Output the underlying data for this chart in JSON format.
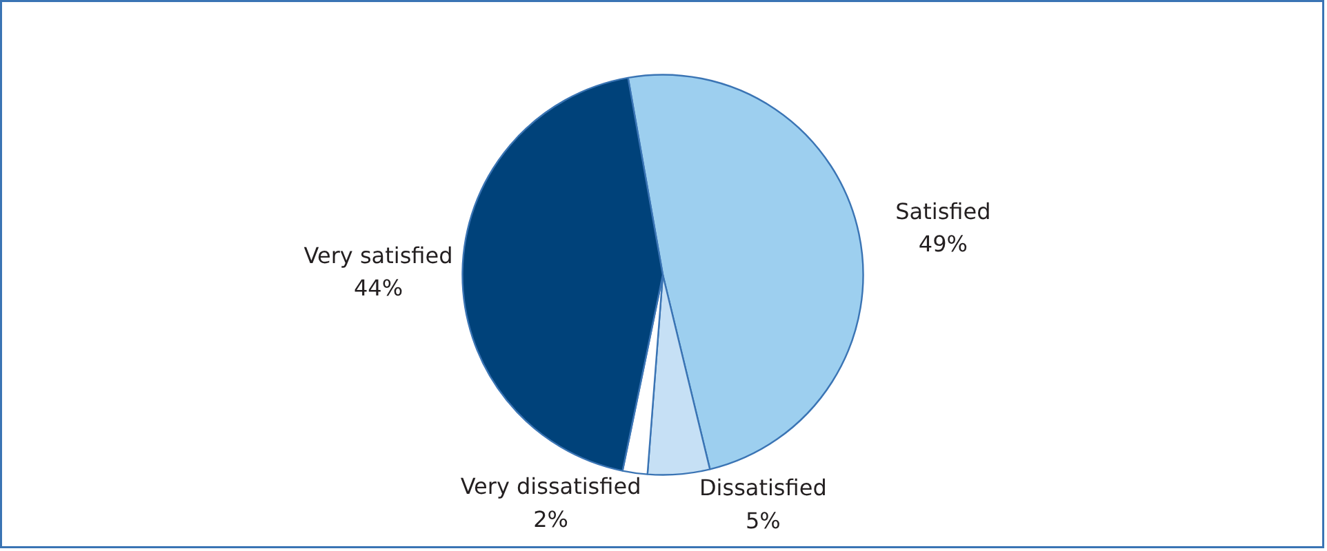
{
  "chart_data": {
    "type": "pie",
    "categories": [
      "Satisfied",
      "Dissatisfied",
      "Very dissatisfied",
      "Very satisfied"
    ],
    "values": [
      49,
      5,
      2,
      44
    ],
    "colors": [
      "#9dcfef",
      "#c6e0f5",
      "#ffffff",
      "#00427a"
    ],
    "value_labels": [
      "49%",
      "5%",
      "2%",
      "44%"
    ]
  }
}
